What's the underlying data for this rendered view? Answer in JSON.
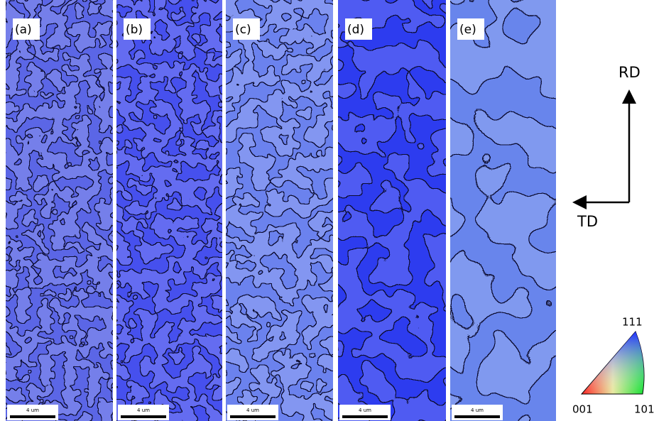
{
  "panels": [
    {
      "label": "(a)",
      "scale_bar": "4 um"
    },
    {
      "label": "(b)",
      "scale_bar": "4 um"
    },
    {
      "label": "(c)",
      "scale_bar": "4 um"
    },
    {
      "label": "(d)",
      "scale_bar": "4 um"
    },
    {
      "label": "(e)",
      "scale_bar": "4 um"
    }
  ],
  "axes": {
    "vertical": "RD",
    "horizontal": "TD"
  },
  "legend": {
    "corners": [
      "001",
      "101",
      "111"
    ]
  }
}
